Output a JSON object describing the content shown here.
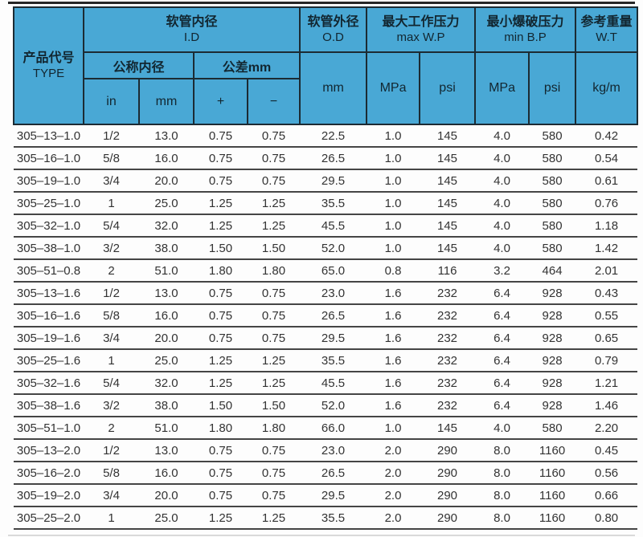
{
  "colors": {
    "header_bg": "#49a8d5",
    "header_border": "#1c2b33",
    "header_text": "#122630",
    "body_text": "#333333",
    "row_line": "#454545"
  },
  "table": {
    "header": {
      "type_cn": "产品代号",
      "type_en": "TYPE",
      "id_cn": "软管内径",
      "id_en": "I.D",
      "nominal": "公称内径",
      "tolerance": "公差mm",
      "in": "in",
      "mm": "mm",
      "plus": "+",
      "minus": "−",
      "od_cn": "软管外径",
      "od_en": "O.D",
      "od_unit": "mm",
      "wp_cn": "最大工作压力",
      "wp_en": "max W.P",
      "wp_mpa": "MPa",
      "wp_psi": "psi",
      "bp_cn": "最小爆破压力",
      "bp_en": "min B.P",
      "bp_mpa": "MPa",
      "bp_psi": "psi",
      "wt_cn": "参考重量",
      "wt_en": "W.T",
      "wt_unit": "kg/m"
    },
    "col_keys": [
      "type",
      "id-in",
      "id-mm",
      "tol-plus",
      "tol-minus",
      "od-mm",
      "wp-mpa",
      "wp-psi",
      "bp-mpa",
      "bp-psi",
      "wt-kgm"
    ],
    "rows": [
      [
        "305–13–1.0",
        "1/2",
        "13.0",
        "0.75",
        "0.75",
        "22.5",
        "1.0",
        "145",
        "4.0",
        "580",
        "0.42"
      ],
      [
        "305–16–1.0",
        "5/8",
        "16.0",
        "0.75",
        "0.75",
        "26.5",
        "1.0",
        "145",
        "4.0",
        "580",
        "0.54"
      ],
      [
        "305–19–1.0",
        "3/4",
        "20.0",
        "0.75",
        "0.75",
        "29.5",
        "1.0",
        "145",
        "4.0",
        "580",
        "0.61"
      ],
      [
        "305–25–1.0",
        "1",
        "25.0",
        "1.25",
        "1.25",
        "35.5",
        "1.0",
        "145",
        "4.0",
        "580",
        "0.76"
      ],
      [
        "305–32–1.0",
        "5/4",
        "32.0",
        "1.25",
        "1.25",
        "45.5",
        "1.0",
        "145",
        "4.0",
        "580",
        "1.18"
      ],
      [
        "305–38–1.0",
        "3/2",
        "38.0",
        "1.50",
        "1.50",
        "52.0",
        "1.0",
        "145",
        "4.0",
        "580",
        "1.42"
      ],
      [
        "305–51–0.8",
        "2",
        "51.0",
        "1.80",
        "1.80",
        "65.0",
        "0.8",
        "116",
        "3.2",
        "464",
        "2.01"
      ],
      [
        "305–13–1.6",
        "1/2",
        "13.0",
        "0.75",
        "0.75",
        "23.0",
        "1.6",
        "232",
        "6.4",
        "928",
        "0.43"
      ],
      [
        "305–16–1.6",
        "5/8",
        "16.0",
        "0.75",
        "0.75",
        "26.5",
        "1.6",
        "232",
        "6.4",
        "928",
        "0.55"
      ],
      [
        "305–19–1.6",
        "3/4",
        "20.0",
        "0.75",
        "0.75",
        "29.5",
        "1.6",
        "232",
        "6.4",
        "928",
        "0.65"
      ],
      [
        "305–25–1.6",
        "1",
        "25.0",
        "1.25",
        "1.25",
        "35.5",
        "1.6",
        "232",
        "6.4",
        "928",
        "0.79"
      ],
      [
        "305–32–1.6",
        "5/4",
        "32.0",
        "1.25",
        "1.25",
        "45.5",
        "1.6",
        "232",
        "6.4",
        "928",
        "1.21"
      ],
      [
        "305–38–1.6",
        "3/2",
        "38.0",
        "1.50",
        "1.50",
        "52.0",
        "1.6",
        "232",
        "6.4",
        "928",
        "1.46"
      ],
      [
        "305–51–1.0",
        "2",
        "51.0",
        "1.80",
        "1.80",
        "66.0",
        "1.0",
        "145",
        "4.0",
        "580",
        "2.20"
      ],
      [
        "305–13–2.0",
        "1/2",
        "13.0",
        "0.75",
        "0.75",
        "23.0",
        "2.0",
        "290",
        "8.0",
        "1160",
        "0.45"
      ],
      [
        "305–16–2.0",
        "5/8",
        "16.0",
        "0.75",
        "0.75",
        "26.5",
        "2.0",
        "290",
        "8.0",
        "1160",
        "0.56"
      ],
      [
        "305–19–2.0",
        "3/4",
        "20.0",
        "0.75",
        "0.75",
        "29.5",
        "2.0",
        "290",
        "8.0",
        "1160",
        "0.66"
      ],
      [
        "305–25–2.0",
        "1",
        "25.0",
        "1.25",
        "1.25",
        "35.5",
        "2.0",
        "290",
        "8.0",
        "1160",
        "0.80"
      ]
    ]
  }
}
